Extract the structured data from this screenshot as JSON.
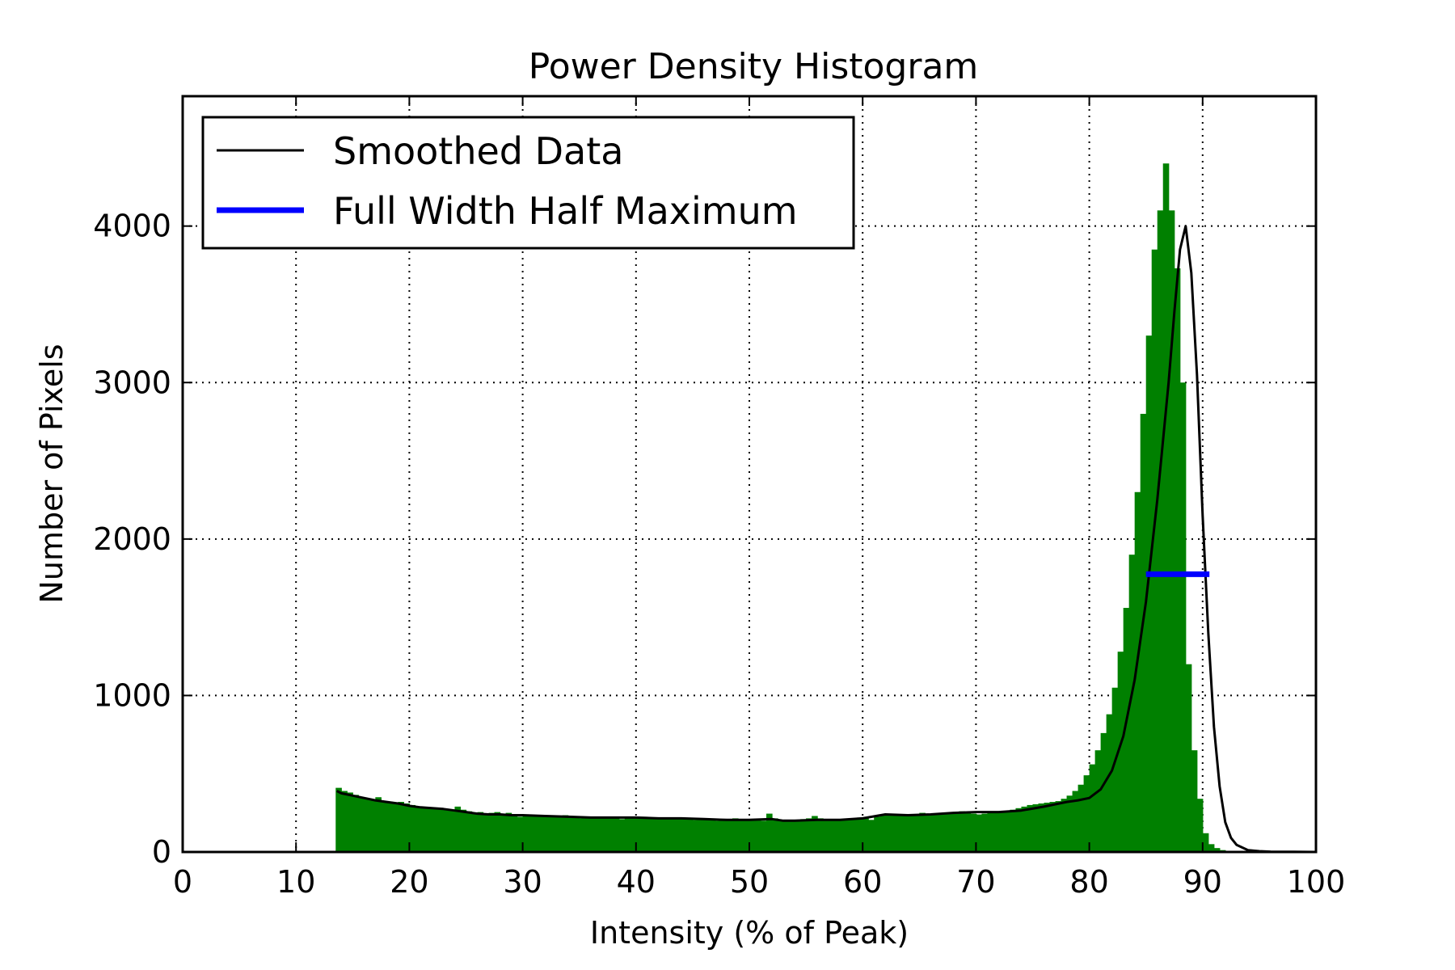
{
  "chart_data": {
    "type": "bar",
    "title": "Power Density Histogram",
    "xlabel": "Intensity (% of Peak)",
    "ylabel": "Number of Pixels",
    "xlim": [
      0,
      100
    ],
    "ylim": [
      0,
      4830
    ],
    "xticks": [
      0,
      10,
      20,
      30,
      40,
      50,
      60,
      70,
      80,
      90,
      100
    ],
    "xtick_labels": [
      "0",
      "10",
      "20",
      "30",
      "40",
      "50",
      "60",
      "70",
      "80",
      "90",
      "100"
    ],
    "yticks": [
      0,
      1000,
      2000,
      3000,
      4000
    ],
    "ytick_labels": [
      "0",
      "1000",
      "2000",
      "3000",
      "4000"
    ],
    "grid": true,
    "legend_position": "top-left",
    "legend": [
      {
        "label": "Smoothed Data",
        "color": "#000000",
        "style": "thin-line"
      },
      {
        "label": "Full Width Half Maximum",
        "color": "#0000ff",
        "style": "thick-line"
      }
    ],
    "histogram": {
      "color": "#008000",
      "bin_width": 0.5,
      "x_start": 13.5,
      "values": [
        410,
        390,
        380,
        365,
        350,
        340,
        330,
        350,
        325,
        320,
        315,
        320,
        310,
        300,
        290,
        285,
        285,
        280,
        275,
        270,
        265,
        290,
        270,
        260,
        250,
        255,
        245,
        250,
        255,
        245,
        250,
        240,
        225,
        230,
        235,
        230,
        235,
        230,
        225,
        230,
        235,
        225,
        220,
        215,
        225,
        220,
        215,
        220,
        220,
        215,
        210,
        225,
        220,
        215,
        225,
        215,
        210,
        215,
        210,
        220,
        210,
        215,
        210,
        205,
        215,
        210,
        205,
        200,
        205,
        210,
        215,
        205,
        200,
        210,
        205,
        200,
        245,
        215,
        205,
        195,
        200,
        205,
        210,
        215,
        230,
        215,
        205,
        210,
        200,
        205,
        210,
        215,
        220,
        215,
        205,
        225,
        235,
        245,
        240,
        235,
        230,
        240,
        235,
        250,
        240,
        235,
        240,
        245,
        250,
        255,
        260,
        250,
        245,
        240,
        245,
        250,
        255,
        255,
        260,
        270,
        280,
        290,
        300,
        305,
        310,
        315,
        320,
        325,
        340,
        360,
        390,
        430,
        490,
        560,
        650,
        760,
        880,
        1050,
        1280,
        1560,
        1900,
        2300,
        2800,
        3300,
        3850,
        4100,
        4400,
        4100,
        3730,
        3000,
        1200,
        650,
        340,
        120,
        50,
        25,
        12,
        6,
        3,
        2,
        1,
        1,
        0
      ]
    },
    "series": [
      {
        "name": "Smoothed Data",
        "color": "#000000",
        "x": [
          13.6,
          14,
          15,
          16,
          17,
          18,
          19,
          20,
          21,
          22,
          23,
          24,
          25,
          26,
          27,
          28,
          29,
          30,
          32,
          34,
          36,
          38,
          40,
          42,
          44,
          46,
          48,
          50,
          52,
          53,
          54,
          56,
          58,
          60,
          62,
          64,
          66,
          68,
          70,
          72,
          74,
          76,
          77,
          78,
          79,
          80,
          81,
          82,
          83,
          84,
          85,
          86,
          87,
          87.5,
          88,
          88.5,
          89,
          89.5,
          90,
          90.5,
          91,
          91.5,
          92,
          92.5,
          93,
          94,
          95,
          96,
          98,
          100
        ],
        "y": [
          390,
          375,
          360,
          345,
          330,
          320,
          310,
          295,
          285,
          280,
          275,
          265,
          255,
          245,
          240,
          240,
          235,
          235,
          230,
          225,
          220,
          220,
          220,
          215,
          215,
          210,
          205,
          205,
          210,
          200,
          200,
          205,
          205,
          215,
          240,
          235,
          240,
          250,
          255,
          255,
          265,
          290,
          305,
          320,
          330,
          345,
          400,
          520,
          740,
          1100,
          1600,
          2250,
          3000,
          3450,
          3850,
          4000,
          3700,
          3050,
          2150,
          1400,
          800,
          420,
          190,
          90,
          45,
          12,
          5,
          2,
          1,
          0
        ]
      },
      {
        "name": "Full Width Half Maximum",
        "color": "#0000ff",
        "x": [
          85.0,
          90.6
        ],
        "y": [
          1775,
          1775
        ]
      }
    ]
  }
}
